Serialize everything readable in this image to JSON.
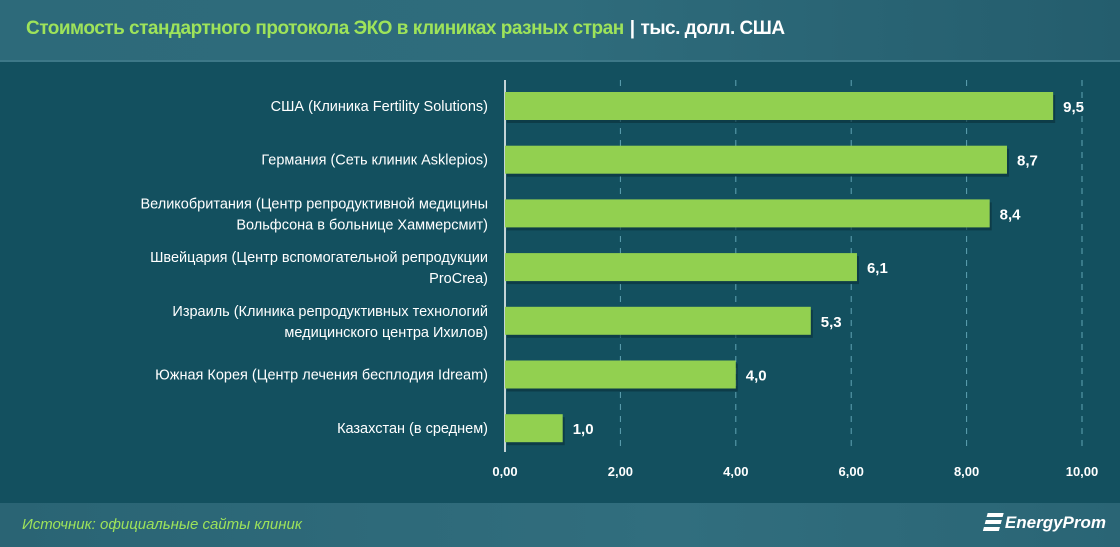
{
  "header": {
    "title_main": "Стоимость стандартного протокола ЭКО в клиниках разных стран",
    "separator": "|",
    "title_unit": "тыс. долл. США"
  },
  "footer": {
    "source": "Источник: официальные сайты клиник",
    "logo": "EnergyProm"
  },
  "colors": {
    "bar": "#92d050",
    "background": "#13505f",
    "title": "#9ee35a"
  },
  "chart_data": {
    "type": "bar",
    "orientation": "horizontal",
    "title": "Стоимость стандартного протокола ЭКО в клиниках разных стран",
    "unit": "тыс. долл. США",
    "categories": [
      [
        "США (Клиника Fertility Solutions)"
      ],
      [
        "Германия (Сеть клиник Asklepios)"
      ],
      [
        "Великобритания (Центр репродуктивной медицины",
        "Вольфсона в больнице Хаммерсмит)"
      ],
      [
        "Швейцария (Центр вспомогательной репродукции",
        "ProCrea)"
      ],
      [
        "Израиль (Клиника репродуктивных технологий",
        "медицинского центра Ихилов)"
      ],
      [
        "Южная Корея (Центр лечения бесплодия Idream)"
      ],
      [
        "Казахстан (в среднем)"
      ]
    ],
    "values": [
      9.5,
      8.7,
      8.4,
      6.1,
      5.3,
      4.0,
      1.0
    ],
    "value_labels": [
      "9,5",
      "8,7",
      "8,4",
      "6,1",
      "5,3",
      "4,0",
      "1,0"
    ],
    "xlim": [
      0,
      10
    ],
    "ticks": [
      0,
      2,
      4,
      6,
      8,
      10
    ],
    "tick_labels": [
      "0,00",
      "2,00",
      "4,00",
      "6,00",
      "8,00",
      "10,00"
    ],
    "grid": "vertical dashed"
  }
}
